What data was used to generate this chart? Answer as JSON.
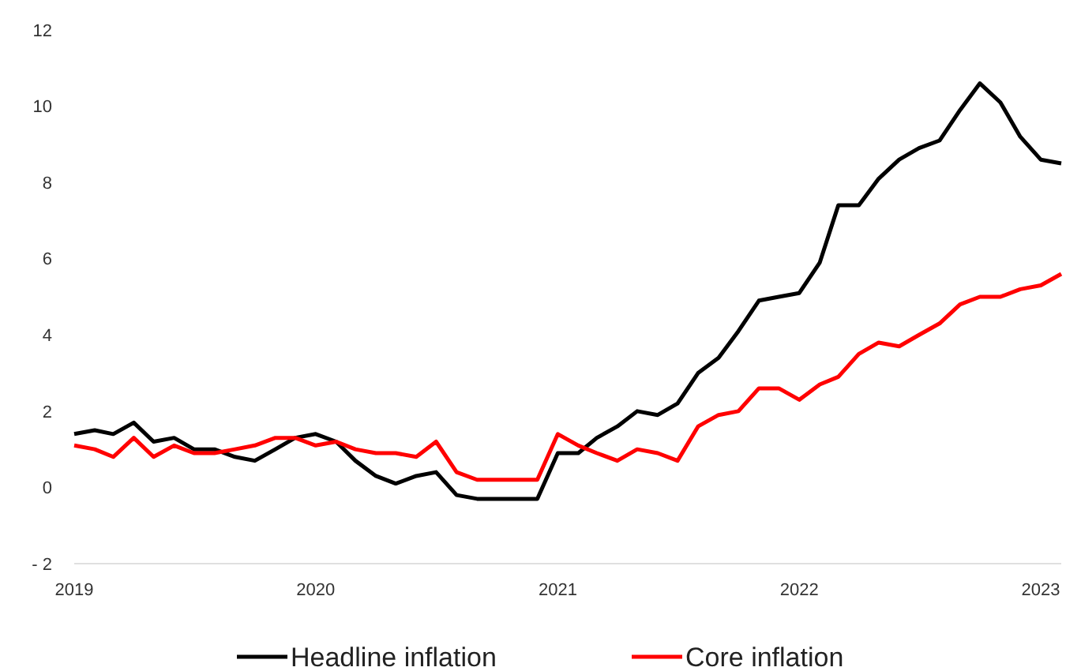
{
  "chart_data": {
    "type": "line",
    "x": [
      "2019-01",
      "2019-02",
      "2019-03",
      "2019-04",
      "2019-05",
      "2019-06",
      "2019-07",
      "2019-08",
      "2019-09",
      "2019-10",
      "2019-11",
      "2019-12",
      "2020-01",
      "2020-02",
      "2020-03",
      "2020-04",
      "2020-05",
      "2020-06",
      "2020-07",
      "2020-08",
      "2020-09",
      "2020-10",
      "2020-11",
      "2020-12",
      "2021-01",
      "2021-02",
      "2021-03",
      "2021-04",
      "2021-05",
      "2021-06",
      "2021-07",
      "2021-08",
      "2021-09",
      "2021-10",
      "2021-11",
      "2021-12",
      "2022-01",
      "2022-02",
      "2022-03",
      "2022-04",
      "2022-05",
      "2022-06",
      "2022-07",
      "2022-08",
      "2022-09",
      "2022-10",
      "2022-11",
      "2022-12",
      "2023-01",
      "2023-02"
    ],
    "series": [
      {
        "name": "Headline inflation",
        "color": "#000000",
        "values": [
          1.4,
          1.5,
          1.4,
          1.7,
          1.2,
          1.3,
          1.0,
          1.0,
          0.8,
          0.7,
          1.0,
          1.3,
          1.4,
          1.2,
          0.7,
          0.3,
          0.1,
          0.3,
          0.4,
          -0.2,
          -0.3,
          -0.3,
          -0.3,
          -0.3,
          0.9,
          0.9,
          1.3,
          1.6,
          2.0,
          1.9,
          2.2,
          3.0,
          3.4,
          4.1,
          4.9,
          5.0,
          5.1,
          5.9,
          7.4,
          7.4,
          8.1,
          8.6,
          8.9,
          9.1,
          9.9,
          10.6,
          10.1,
          9.2,
          8.6,
          8.5
        ]
      },
      {
        "name": "Core inflation",
        "color": "#ff0000",
        "values": [
          1.1,
          1.0,
          0.8,
          1.3,
          0.8,
          1.1,
          0.9,
          0.9,
          1.0,
          1.1,
          1.3,
          1.3,
          1.1,
          1.2,
          1.0,
          0.9,
          0.9,
          0.8,
          1.2,
          0.4,
          0.2,
          0.2,
          0.2,
          0.2,
          1.4,
          1.1,
          0.9,
          0.7,
          1.0,
          0.9,
          0.7,
          1.6,
          1.9,
          2.0,
          2.6,
          2.6,
          2.3,
          2.7,
          2.9,
          3.5,
          3.8,
          3.7,
          4.0,
          4.3,
          4.8,
          5.0,
          5.0,
          5.2,
          5.3,
          5.6
        ]
      }
    ],
    "xlim": [
      "2019-01",
      "2023-02"
    ],
    "xticks": [
      "2019",
      "2020",
      "2021",
      "2022",
      "2023"
    ],
    "ylim": [
      -2,
      12
    ],
    "yticks": [
      {
        "value": -2,
        "label": "- 2"
      },
      0,
      2,
      4,
      6,
      8,
      10,
      12
    ],
    "grid": false,
    "legend": "bottom",
    "line_style": "solid",
    "marker": "none"
  }
}
